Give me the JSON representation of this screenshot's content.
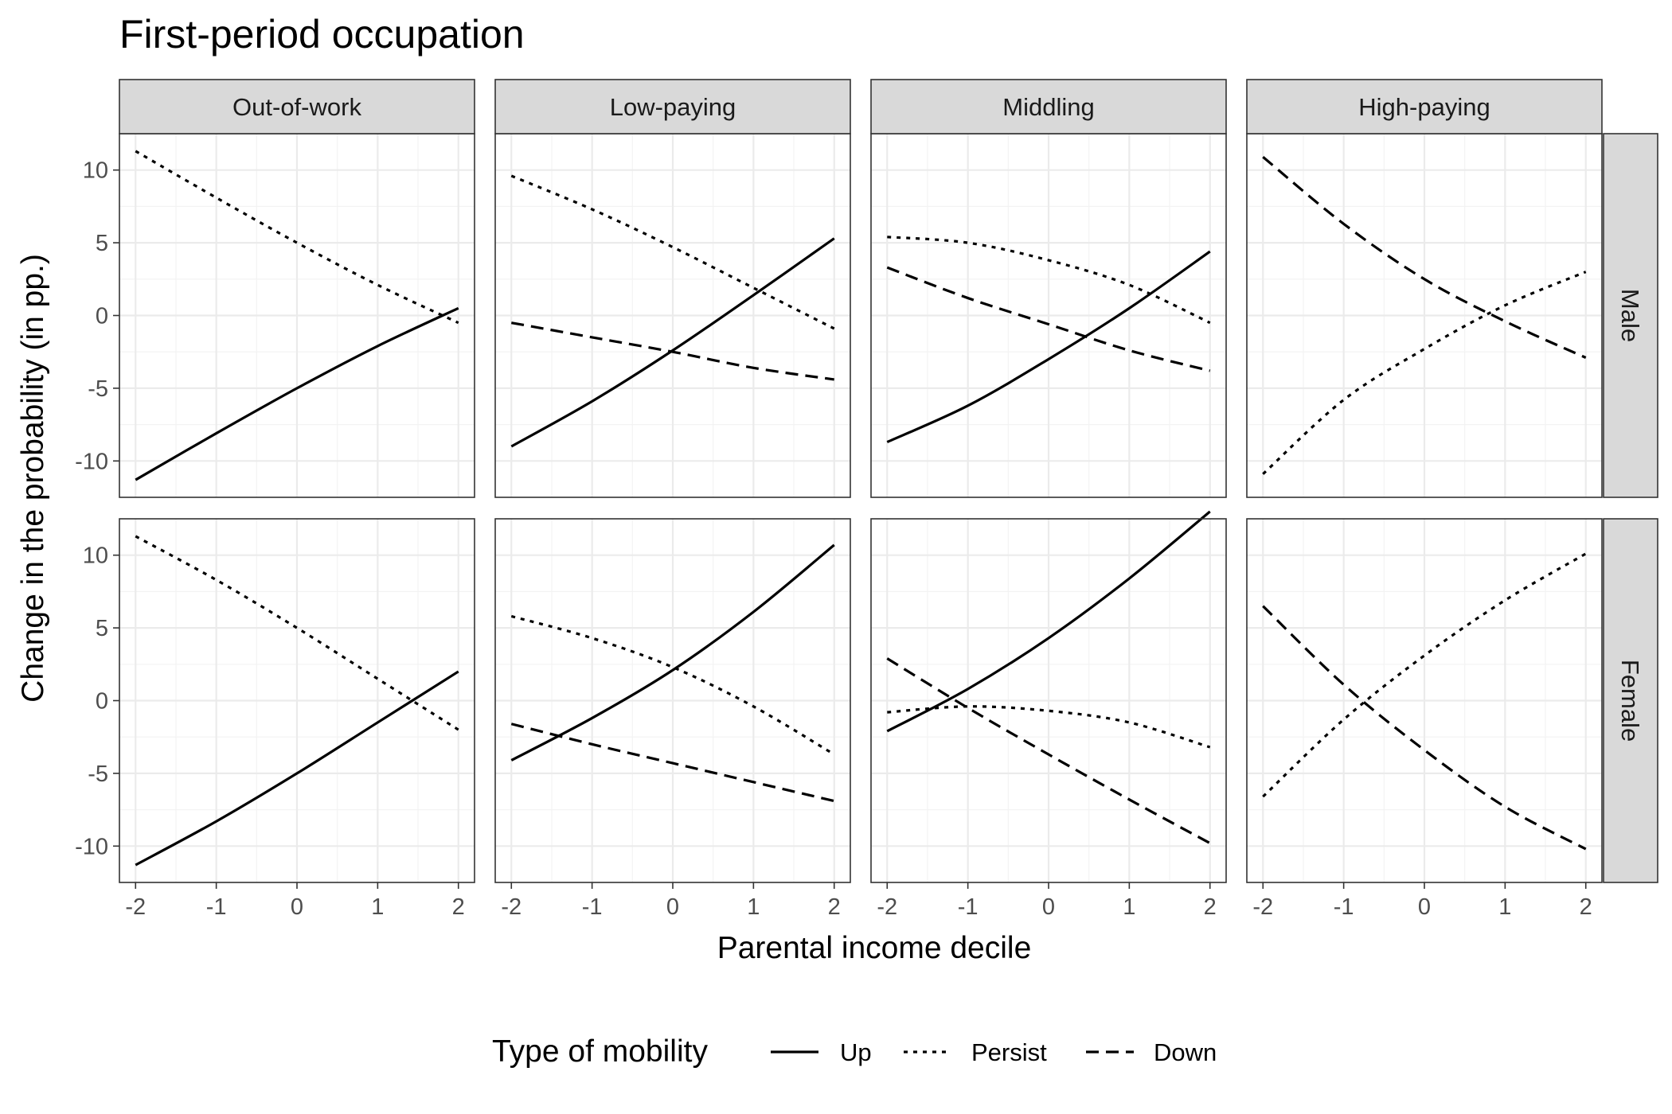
{
  "chart_data": {
    "type": "line",
    "title": "First-period occupation",
    "xlabel": "Parental income decile",
    "ylabel": "Change in the probability (in pp.)",
    "xlim": [
      -2.2,
      2.2
    ],
    "ylim": [
      -12.5,
      12.5
    ],
    "x_ticks": [
      -2,
      -1,
      0,
      1,
      2
    ],
    "x_tick_labels": [
      "-2",
      "-1",
      "0",
      "1",
      "2"
    ],
    "y_ticks": [
      -10,
      -5,
      0,
      5,
      10
    ],
    "y_tick_labels": [
      "-10",
      "-5",
      "0",
      "5",
      "10"
    ],
    "columns": [
      "Out-of-work",
      "Low-paying",
      "Middling",
      "High-paying"
    ],
    "rows": [
      "Male",
      "Female"
    ],
    "x": [
      -2,
      -1,
      0,
      1,
      2
    ],
    "legend": {
      "title": "Type of mobility",
      "position": "bottom",
      "entries": [
        {
          "name": "Up",
          "dash": "solid"
        },
        {
          "name": "Persist",
          "dash": "dotted"
        },
        {
          "name": "Down",
          "dash": "dashed"
        }
      ]
    },
    "panels": [
      {
        "row": "Male",
        "col": "Out-of-work",
        "series": [
          {
            "name": "Up",
            "values": [
              -11.3,
              -8.1,
              -5.0,
              -2.1,
              0.5
            ]
          },
          {
            "name": "Persist",
            "values": [
              11.3,
              8.1,
              5.0,
              2.1,
              -0.5
            ]
          }
        ]
      },
      {
        "row": "Male",
        "col": "Low-paying",
        "series": [
          {
            "name": "Up",
            "values": [
              -9.0,
              -5.9,
              -2.4,
              1.4,
              5.3
            ]
          },
          {
            "name": "Persist",
            "values": [
              9.6,
              7.3,
              4.7,
              1.9,
              -0.9
            ]
          },
          {
            "name": "Down",
            "values": [
              -0.5,
              -1.5,
              -2.5,
              -3.6,
              -4.4
            ]
          }
        ]
      },
      {
        "row": "Male",
        "col": "Middling",
        "series": [
          {
            "name": "Up",
            "values": [
              -8.7,
              -6.2,
              -3.0,
              0.5,
              4.4
            ]
          },
          {
            "name": "Persist",
            "values": [
              5.4,
              5.0,
              3.8,
              2.1,
              -0.5
            ]
          },
          {
            "name": "Down",
            "values": [
              3.3,
              1.2,
              -0.6,
              -2.4,
              -3.8
            ]
          }
        ]
      },
      {
        "row": "Male",
        "col": "High-paying",
        "series": [
          {
            "name": "Persist",
            "values": [
              -10.9,
              -5.8,
              -2.3,
              0.7,
              3.0
            ]
          },
          {
            "name": "Down",
            "values": [
              10.9,
              6.3,
              2.5,
              -0.4,
              -2.9
            ]
          }
        ]
      },
      {
        "row": "Female",
        "col": "Out-of-work",
        "series": [
          {
            "name": "Up",
            "values": [
              -11.3,
              -8.3,
              -5.0,
              -1.5,
              2.0
            ]
          },
          {
            "name": "Persist",
            "values": [
              11.3,
              8.3,
              5.0,
              1.5,
              -2.0
            ]
          }
        ]
      },
      {
        "row": "Female",
        "col": "Low-paying",
        "series": [
          {
            "name": "Up",
            "values": [
              -4.1,
              -1.2,
              2.1,
              6.1,
              10.7
            ]
          },
          {
            "name": "Persist",
            "values": [
              5.8,
              4.3,
              2.3,
              -0.4,
              -3.7
            ]
          },
          {
            "name": "Down",
            "values": [
              -1.6,
              -3.0,
              -4.3,
              -5.6,
              -6.9
            ]
          }
        ]
      },
      {
        "row": "Female",
        "col": "Middling",
        "series": [
          {
            "name": "Up",
            "values": [
              -2.1,
              0.8,
              4.3,
              8.4,
              13.0
            ]
          },
          {
            "name": "Persist",
            "values": [
              -0.8,
              -0.4,
              -0.7,
              -1.5,
              -3.2
            ]
          },
          {
            "name": "Down",
            "values": [
              2.9,
              -0.5,
              -3.7,
              -6.8,
              -9.8
            ]
          }
        ]
      },
      {
        "row": "Female",
        "col": "High-paying",
        "series": [
          {
            "name": "Persist",
            "values": [
              -6.6,
              -1.3,
              3.1,
              6.9,
              10.1
            ]
          },
          {
            "name": "Down",
            "values": [
              6.5,
              1.1,
              -3.4,
              -7.3,
              -10.2
            ]
          }
        ]
      }
    ]
  }
}
